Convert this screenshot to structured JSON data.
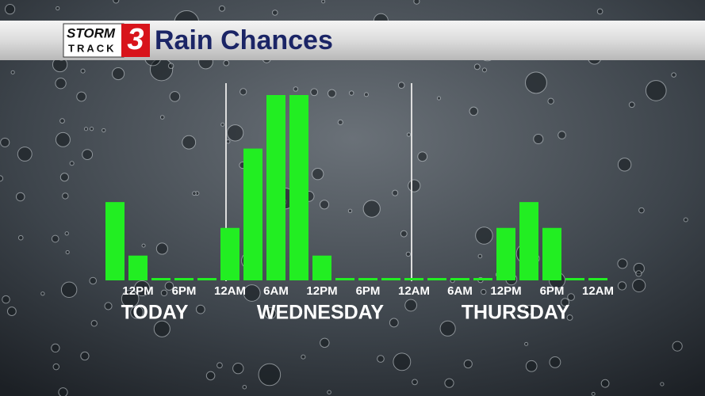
{
  "logo": {
    "top": "STORM",
    "bottom": "TRACK",
    "number": "3"
  },
  "chart_data": {
    "type": "bar",
    "title": "Rain Chances",
    "categories": [
      null,
      "12PM",
      null,
      "6PM",
      null,
      "12AM",
      null,
      "6AM",
      null,
      "12PM",
      null,
      "6PM",
      null,
      "12AM",
      null,
      "6AM",
      null,
      "12PM",
      null,
      "6PM",
      null,
      "12AM"
    ],
    "values": [
      42,
      13,
      0,
      0,
      0,
      28,
      71,
      100,
      100,
      13,
      0,
      0,
      0,
      0,
      0,
      0,
      0,
      28,
      42,
      28,
      0,
      0
    ],
    "color": "#22ee22",
    "ylim": [
      0,
      100
    ],
    "day_labels": [
      "TODAY",
      "WEDNESDAY",
      "THURSDAY"
    ]
  }
}
